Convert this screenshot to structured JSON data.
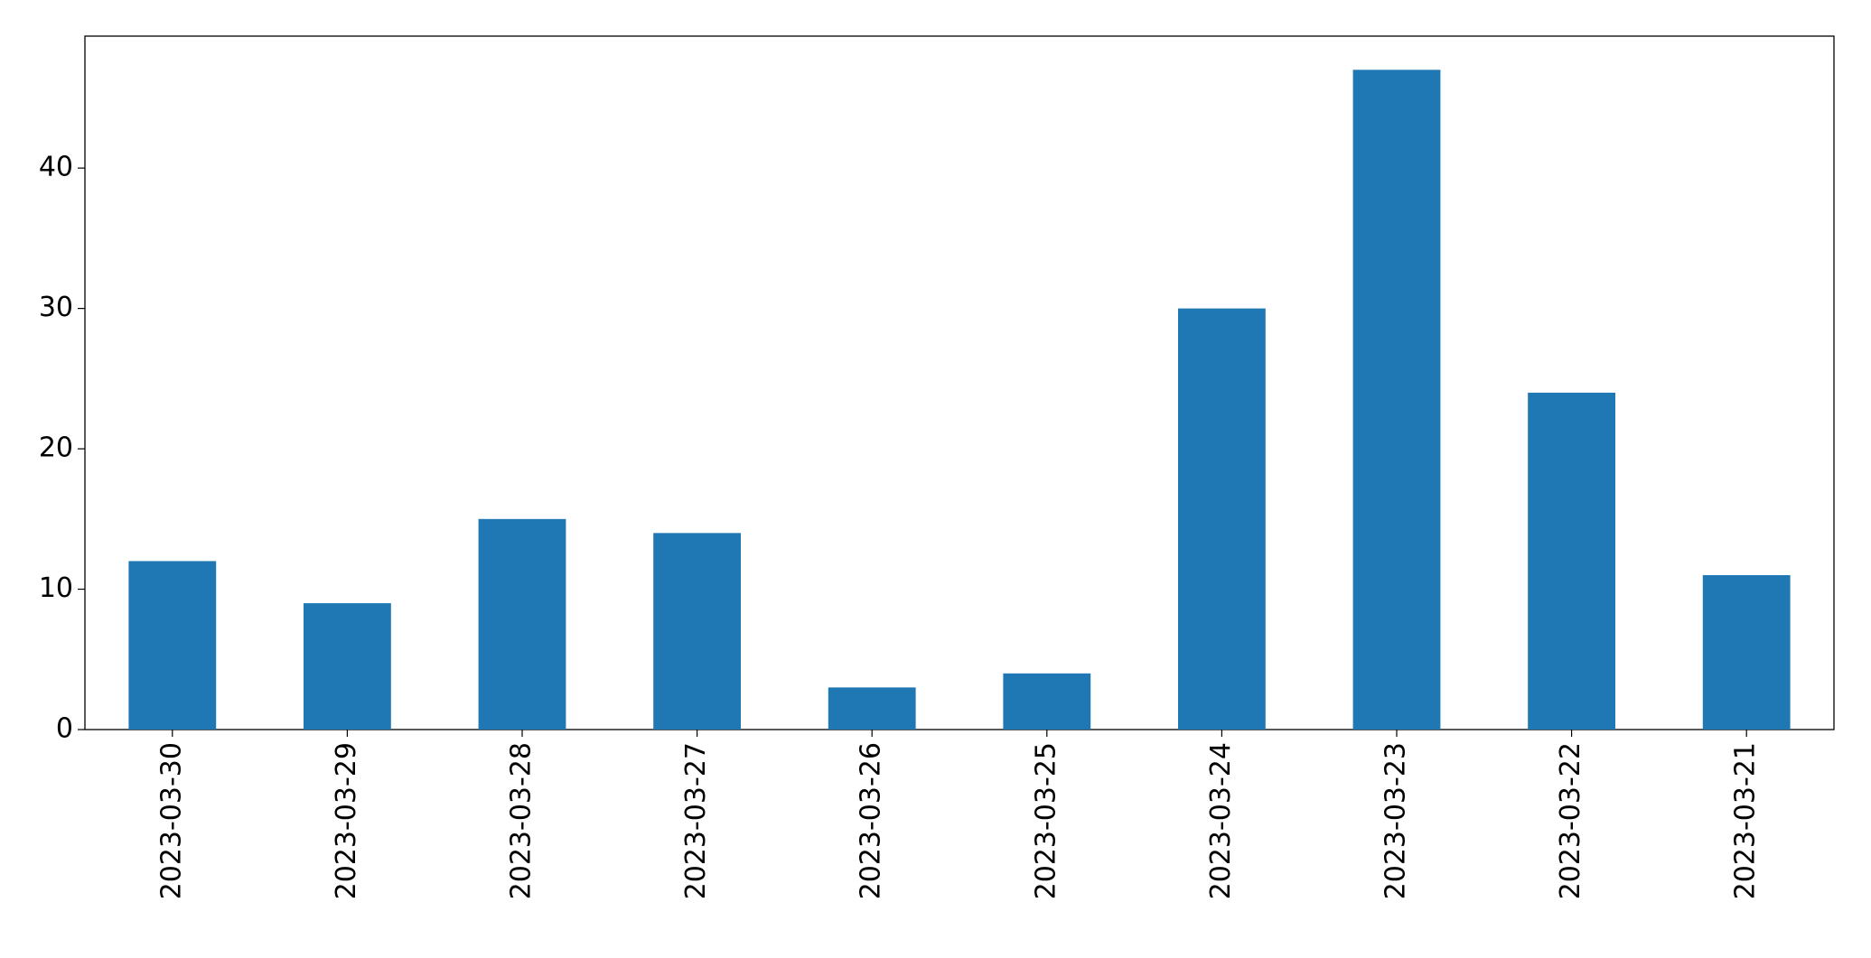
{
  "chart_data": {
    "type": "bar",
    "categories": [
      "2023-03-30",
      "2023-03-29",
      "2023-03-28",
      "2023-03-27",
      "2023-03-26",
      "2023-03-25",
      "2023-03-24",
      "2023-03-23",
      "2023-03-22",
      "2023-03-21"
    ],
    "values": [
      12,
      9,
      15,
      14,
      3,
      4,
      30,
      47,
      24,
      11
    ],
    "color": "#1f77b4",
    "ylim": [
      0,
      49.4
    ],
    "yticks": [
      0,
      10,
      20,
      30,
      40
    ],
    "grid": false
  }
}
